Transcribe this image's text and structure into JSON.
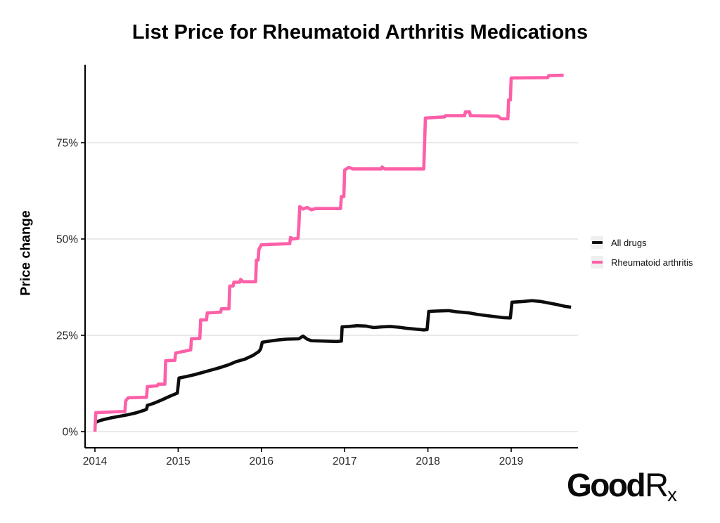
{
  "title": "List Price for Rheumatoid Arthritis Medications",
  "y_axis": {
    "label": "Price change",
    "ticks": [
      {
        "value": 0,
        "label": "0%"
      },
      {
        "value": 25,
        "label": "25%"
      },
      {
        "value": 50,
        "label": "50%"
      },
      {
        "value": 75,
        "label": "75%"
      }
    ]
  },
  "x_axis": {
    "ticks": [
      {
        "value": 2014,
        "label": "2014"
      },
      {
        "value": 2015,
        "label": "2015"
      },
      {
        "value": 2016,
        "label": "2016"
      },
      {
        "value": 2017,
        "label": "2017"
      },
      {
        "value": 2018,
        "label": "2018"
      },
      {
        "value": 2019,
        "label": "2019"
      }
    ]
  },
  "logo": {
    "bold_part": "Good",
    "light_part": "R",
    "sub_part": "x"
  },
  "colors": {
    "all_drugs": "#0d0d0d",
    "rheumatoid": "#fc60a8",
    "gridline": "#d6d6d6",
    "axis": "#000000",
    "tick_text": "#262626",
    "legend_key_bg": "#efefef"
  },
  "chart_data": {
    "type": "line",
    "title": "List Price for Rheumatoid Arthritis Medications",
    "xlabel": "",
    "ylabel": "Price change",
    "x_range": [
      2013.88,
      2019.8
    ],
    "y_range_pct": [
      -4,
      96
    ],
    "grid": "horizontal",
    "legend_position": "right",
    "series": [
      {
        "name": "All drugs",
        "color": "#0d0d0d",
        "points": [
          [
            2014.0,
            2.3
          ],
          [
            2014.05,
            2.8
          ],
          [
            2014.1,
            3.1
          ],
          [
            2014.2,
            3.6
          ],
          [
            2014.3,
            4.0
          ],
          [
            2014.4,
            4.4
          ],
          [
            2014.5,
            4.9
          ],
          [
            2014.6,
            5.6
          ],
          [
            2014.62,
            5.8
          ],
          [
            2014.63,
            6.8
          ],
          [
            2014.7,
            7.3
          ],
          [
            2014.8,
            8.2
          ],
          [
            2014.9,
            9.2
          ],
          [
            2014.99,
            10.0
          ],
          [
            2015.01,
            13.9
          ],
          [
            2015.1,
            14.3
          ],
          [
            2015.2,
            14.8
          ],
          [
            2015.3,
            15.4
          ],
          [
            2015.4,
            16.0
          ],
          [
            2015.5,
            16.6
          ],
          [
            2015.6,
            17.3
          ],
          [
            2015.7,
            18.2
          ],
          [
            2015.8,
            18.8
          ],
          [
            2015.9,
            19.8
          ],
          [
            2015.97,
            20.8
          ],
          [
            2015.99,
            21.4
          ],
          [
            2016.01,
            23.2
          ],
          [
            2016.1,
            23.5
          ],
          [
            2016.2,
            23.8
          ],
          [
            2016.3,
            24.0
          ],
          [
            2016.45,
            24.1
          ],
          [
            2016.5,
            24.8
          ],
          [
            2016.55,
            24.0
          ],
          [
            2016.6,
            23.6
          ],
          [
            2016.75,
            23.5
          ],
          [
            2016.9,
            23.4
          ],
          [
            2016.96,
            23.5
          ],
          [
            2016.97,
            27.2
          ],
          [
            2017.05,
            27.3
          ],
          [
            2017.15,
            27.5
          ],
          [
            2017.25,
            27.4
          ],
          [
            2017.35,
            27.0
          ],
          [
            2017.45,
            27.2
          ],
          [
            2017.55,
            27.3
          ],
          [
            2017.65,
            27.1
          ],
          [
            2017.75,
            26.8
          ],
          [
            2017.85,
            26.6
          ],
          [
            2017.95,
            26.4
          ],
          [
            2017.99,
            26.5
          ],
          [
            2018.01,
            31.2
          ],
          [
            2018.1,
            31.3
          ],
          [
            2018.25,
            31.4
          ],
          [
            2018.35,
            31.1
          ],
          [
            2018.5,
            30.8
          ],
          [
            2018.6,
            30.4
          ],
          [
            2018.75,
            30.0
          ],
          [
            2018.9,
            29.6
          ],
          [
            2018.99,
            29.5
          ],
          [
            2019.01,
            33.6
          ],
          [
            2019.15,
            33.8
          ],
          [
            2019.25,
            34.0
          ],
          [
            2019.35,
            33.8
          ],
          [
            2019.45,
            33.4
          ],
          [
            2019.55,
            33.0
          ],
          [
            2019.65,
            32.5
          ],
          [
            2019.72,
            32.3
          ]
        ]
      },
      {
        "name": "Rheumatoid arthritis",
        "color": "#fc60a8",
        "points": [
          [
            2014.0,
            0.0
          ],
          [
            2014.01,
            4.9
          ],
          [
            2014.3,
            5.2
          ],
          [
            2014.36,
            5.2
          ],
          [
            2014.37,
            8.0
          ],
          [
            2014.4,
            8.8
          ],
          [
            2014.62,
            8.9
          ],
          [
            2014.63,
            11.7
          ],
          [
            2014.75,
            11.9
          ],
          [
            2014.76,
            12.3
          ],
          [
            2014.84,
            12.3
          ],
          [
            2014.85,
            18.4
          ],
          [
            2014.96,
            18.5
          ],
          [
            2014.97,
            20.4
          ],
          [
            2015.15,
            21.2
          ],
          [
            2015.16,
            24.1
          ],
          [
            2015.26,
            24.2
          ],
          [
            2015.27,
            29.0
          ],
          [
            2015.34,
            29.0
          ],
          [
            2015.35,
            30.8
          ],
          [
            2015.51,
            31.0
          ],
          [
            2015.52,
            31.9
          ],
          [
            2015.61,
            31.9
          ],
          [
            2015.62,
            37.8
          ],
          [
            2015.66,
            37.8
          ],
          [
            2015.67,
            38.8
          ],
          [
            2015.74,
            38.8
          ],
          [
            2015.75,
            39.5
          ],
          [
            2015.78,
            38.9
          ],
          [
            2015.93,
            38.9
          ],
          [
            2015.94,
            44.5
          ],
          [
            2015.96,
            44.5
          ],
          [
            2015.97,
            47.3
          ],
          [
            2016.0,
            48.5
          ],
          [
            2016.34,
            48.8
          ],
          [
            2016.35,
            50.4
          ],
          [
            2016.38,
            50.0
          ],
          [
            2016.44,
            50.2
          ],
          [
            2016.45,
            53.6
          ],
          [
            2016.46,
            58.4
          ],
          [
            2016.5,
            57.8
          ],
          [
            2016.55,
            58.2
          ],
          [
            2016.6,
            57.6
          ],
          [
            2016.65,
            57.9
          ],
          [
            2016.95,
            57.9
          ],
          [
            2016.96,
            61.0
          ],
          [
            2016.99,
            61.0
          ],
          [
            2017.0,
            67.9
          ],
          [
            2017.05,
            68.6
          ],
          [
            2017.1,
            68.2
          ],
          [
            2017.44,
            68.2
          ],
          [
            2017.45,
            68.7
          ],
          [
            2017.48,
            68.2
          ],
          [
            2017.95,
            68.2
          ],
          [
            2017.97,
            81.4
          ],
          [
            2018.2,
            81.7
          ],
          [
            2018.21,
            82.0
          ],
          [
            2018.44,
            82.0
          ],
          [
            2018.45,
            83.0
          ],
          [
            2018.5,
            83.0
          ],
          [
            2018.51,
            82.0
          ],
          [
            2018.84,
            81.9
          ],
          [
            2018.88,
            81.2
          ],
          [
            2018.96,
            81.2
          ],
          [
            2018.97,
            86.1
          ],
          [
            2018.99,
            86.1
          ],
          [
            2019.0,
            91.8
          ],
          [
            2019.44,
            91.9
          ],
          [
            2019.45,
            92.4
          ],
          [
            2019.63,
            92.5
          ]
        ]
      }
    ]
  }
}
